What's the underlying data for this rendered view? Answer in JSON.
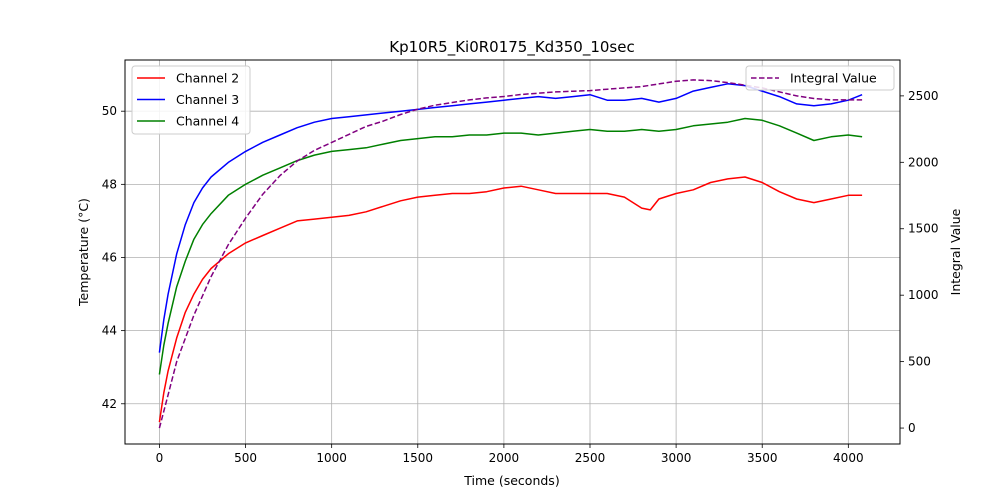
{
  "chart_data": {
    "type": "line",
    "title": "Kp10R5_Ki0R0175_Kd350_10sec",
    "xlabel": "Time (seconds)",
    "ylabel": "Temperature (°C)",
    "y2label": "Integral Value",
    "xlim": [
      -200,
      4300
    ],
    "ylim": [
      40.9,
      51.4
    ],
    "y2lim": [
      -120,
      2770
    ],
    "xticks": [
      0,
      500,
      1000,
      1500,
      2000,
      2500,
      3000,
      3500,
      4000
    ],
    "yticks": [
      42,
      44,
      46,
      48,
      50
    ],
    "y2ticks": [
      0,
      500,
      1000,
      1500,
      2000,
      2500
    ],
    "grid": true,
    "legend_left_placement": "upper-left",
    "legend_right_placement": "upper-right",
    "series": [
      {
        "name": "Channel 2",
        "axis": "left",
        "color": "#ff0000",
        "style": "solid",
        "x": [
          0,
          25,
          50,
          100,
          150,
          200,
          250,
          300,
          400,
          500,
          600,
          700,
          800,
          900,
          1000,
          1100,
          1200,
          1300,
          1400,
          1500,
          1600,
          1700,
          1800,
          1900,
          2000,
          2100,
          2200,
          2300,
          2400,
          2500,
          2600,
          2700,
          2800,
          2850,
          2900,
          3000,
          3100,
          3200,
          3300,
          3400,
          3500,
          3600,
          3700,
          3800,
          3900,
          4000,
          4080
        ],
        "y": [
          41.5,
          42.3,
          42.9,
          43.8,
          44.5,
          45.0,
          45.4,
          45.7,
          46.1,
          46.4,
          46.6,
          46.8,
          47.0,
          47.05,
          47.1,
          47.15,
          47.25,
          47.4,
          47.55,
          47.65,
          47.7,
          47.75,
          47.75,
          47.8,
          47.9,
          47.95,
          47.85,
          47.75,
          47.75,
          47.75,
          47.75,
          47.65,
          47.35,
          47.3,
          47.6,
          47.75,
          47.85,
          48.05,
          48.15,
          48.2,
          48.05,
          47.8,
          47.6,
          47.5,
          47.6,
          47.7,
          47.7
        ]
      },
      {
        "name": "Channel 3",
        "axis": "left",
        "color": "#0000ff",
        "style": "solid",
        "x": [
          0,
          25,
          50,
          100,
          150,
          200,
          250,
          300,
          400,
          500,
          600,
          700,
          800,
          900,
          1000,
          1100,
          1200,
          1300,
          1400,
          1500,
          1600,
          1700,
          1800,
          1900,
          2000,
          2100,
          2200,
          2300,
          2400,
          2500,
          2600,
          2700,
          2800,
          2900,
          3000,
          3100,
          3200,
          3300,
          3400,
          3500,
          3600,
          3700,
          3800,
          3900,
          4000,
          4080
        ],
        "y": [
          43.4,
          44.3,
          45.0,
          46.1,
          46.9,
          47.5,
          47.9,
          48.2,
          48.6,
          48.9,
          49.15,
          49.35,
          49.55,
          49.7,
          49.8,
          49.85,
          49.9,
          49.95,
          50.0,
          50.05,
          50.1,
          50.15,
          50.2,
          50.25,
          50.3,
          50.35,
          50.4,
          50.35,
          50.4,
          50.45,
          50.3,
          50.3,
          50.35,
          50.25,
          50.35,
          50.55,
          50.65,
          50.75,
          50.7,
          50.55,
          50.4,
          50.2,
          50.15,
          50.2,
          50.3,
          50.45
        ]
      },
      {
        "name": "Channel 4",
        "axis": "left",
        "color": "#008000",
        "style": "solid",
        "x": [
          0,
          25,
          50,
          100,
          150,
          200,
          250,
          300,
          400,
          500,
          600,
          700,
          800,
          900,
          1000,
          1100,
          1200,
          1300,
          1400,
          1500,
          1600,
          1700,
          1800,
          1900,
          2000,
          2100,
          2200,
          2300,
          2400,
          2500,
          2600,
          2700,
          2800,
          2900,
          3000,
          3100,
          3200,
          3300,
          3400,
          3500,
          3600,
          3700,
          3800,
          3900,
          4000,
          4080
        ],
        "y": [
          42.8,
          43.6,
          44.2,
          45.2,
          45.9,
          46.5,
          46.9,
          47.2,
          47.7,
          48.0,
          48.25,
          48.45,
          48.65,
          48.8,
          48.9,
          48.95,
          49.0,
          49.1,
          49.2,
          49.25,
          49.3,
          49.3,
          49.35,
          49.35,
          49.4,
          49.4,
          49.35,
          49.4,
          49.45,
          49.5,
          49.45,
          49.45,
          49.5,
          49.45,
          49.5,
          49.6,
          49.65,
          49.7,
          49.8,
          49.75,
          49.6,
          49.4,
          49.2,
          49.3,
          49.35,
          49.3
        ]
      },
      {
        "name": "Integral Value",
        "axis": "right",
        "color": "#800080",
        "style": "dashed",
        "x": [
          0,
          50,
          100,
          200,
          300,
          400,
          500,
          600,
          700,
          800,
          900,
          1000,
          1100,
          1200,
          1300,
          1400,
          1500,
          1600,
          1700,
          1800,
          1900,
          2000,
          2100,
          2200,
          2300,
          2400,
          2500,
          2600,
          2700,
          2800,
          2900,
          3000,
          3100,
          3200,
          3300,
          3400,
          3500,
          3600,
          3700,
          3800,
          3900,
          4000,
          4080
        ],
        "y": [
          0,
          250,
          500,
          850,
          1140,
          1380,
          1580,
          1760,
          1900,
          2010,
          2090,
          2150,
          2210,
          2270,
          2310,
          2360,
          2400,
          2430,
          2450,
          2470,
          2485,
          2495,
          2510,
          2520,
          2530,
          2535,
          2540,
          2550,
          2560,
          2570,
          2590,
          2610,
          2620,
          2615,
          2600,
          2580,
          2560,
          2530,
          2500,
          2480,
          2470,
          2470,
          2470
        ]
      }
    ]
  }
}
